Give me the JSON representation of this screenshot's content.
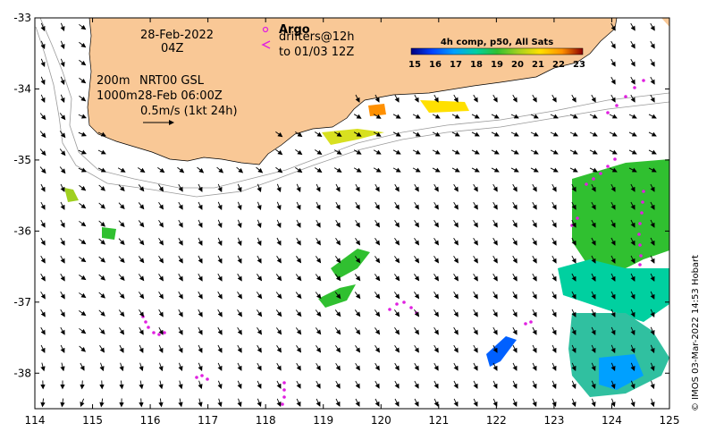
{
  "map": {
    "lon_ticks": [
      "114",
      "115",
      "116",
      "117",
      "118",
      "119",
      "120",
      "121",
      "122",
      "123",
      "124",
      "125"
    ],
    "lat_ticks": [
      "-33",
      "-34",
      "-35",
      "-36",
      "-37",
      "-38"
    ],
    "lon_range": [
      114,
      125
    ],
    "lat_range": [
      -38.5,
      -33
    ]
  },
  "annotations": {
    "date": "28-Feb-2022",
    "time": "04Z",
    "isobath_200": "200m",
    "isobath_1000": "1000m",
    "product": "NRT00 GSL",
    "product_time": "28-Feb 06:00Z",
    "scale_vector": "0.5m/s (1kt 24h)",
    "argo_label": "Argo",
    "drifters_label": "drifters@12h",
    "drifters_to": "to 01/03 12Z"
  },
  "colorbar": {
    "title": "4h comp, p50, All Sats",
    "ticks": [
      "15",
      "16",
      "17",
      "18",
      "19",
      "20",
      "21",
      "22",
      "23"
    ],
    "colors": [
      "#00007f",
      "#0040ff",
      "#00a0ff",
      "#00d0a0",
      "#30c030",
      "#a0d020",
      "#ffe000",
      "#ff9000",
      "#d03000",
      "#8b0000"
    ]
  },
  "credit": "© IMOS 03-Mar-2022 14:53 Hobart",
  "colors": {
    "land": "#f9c896",
    "drifter": "#e020e0",
    "isobath": "#9a9a9a"
  }
}
